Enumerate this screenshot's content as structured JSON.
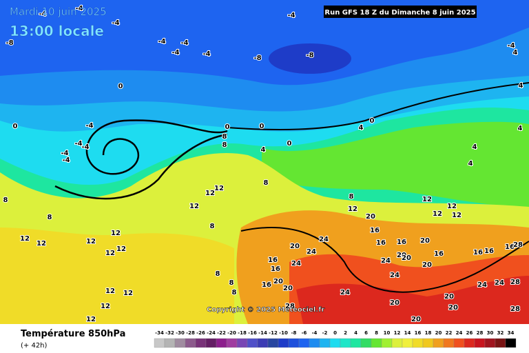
{
  "header": {
    "date": "Mardi 10 juin 2025",
    "time": "13:00 locale",
    "run": "Run GFS 18 Z du Dimanche 8 juin 2025"
  },
  "copyright": "Copyright © 2025 Meteociel.fr",
  "footer": {
    "title": "Température 850hPa",
    "lead": "(+ 42h)"
  },
  "legend": {
    "labels": [
      -34,
      -32,
      -30,
      -28,
      -26,
      -24,
      -22,
      -20,
      -18,
      -16,
      -14,
      -12,
      -10,
      -8,
      -6,
      -4,
      -2,
      0,
      2,
      4,
      6,
      8,
      10,
      12,
      14,
      16,
      18,
      20,
      22,
      24,
      26,
      28,
      30,
      32,
      34
    ],
    "colors": [
      "#c8c8c8",
      "#b4b4b4",
      "#a08ca0",
      "#8c5a8c",
      "#783278",
      "#641e64",
      "#8c1e8c",
      "#a03ca0",
      "#7846b4",
      "#5050c8",
      "#3c3cb4",
      "#2846a0",
      "#1e3cc8",
      "#1e50dc",
      "#1e64f0",
      "#1e8cf0",
      "#1eb4f0",
      "#1edcf0",
      "#1ee6c8",
      "#1ee6a0",
      "#32dc64",
      "#64e632",
      "#a0f032",
      "#dcf03c",
      "#f0f03c",
      "#f0dc28",
      "#f0c81e",
      "#f0a01e",
      "#f0781e",
      "#f0501e",
      "#dc281e",
      "#c8141e",
      "#a0141e",
      "#781414",
      "#000000"
    ]
  },
  "contour_labels": [
    -4,
    -4,
    -4,
    -4,
    -8,
    -4,
    -4,
    -4,
    -4,
    -8,
    -8,
    -4,
    4,
    4,
    0,
    -4,
    0,
    -4,
    -4,
    -4,
    -4,
    0,
    0,
    8,
    8,
    4,
    0,
    4,
    0,
    4,
    4,
    4,
    8,
    12,
    12,
    12,
    8,
    8,
    8,
    12,
    12,
    12,
    12,
    12,
    12,
    12,
    8,
    12,
    12,
    12,
    12,
    20,
    24,
    20,
    24,
    16,
    16,
    16,
    20,
    16,
    16,
    24,
    20,
    20,
    16,
    8,
    8,
    8,
    12,
    12,
    12,
    12,
    20,
    20,
    24,
    20,
    24,
    16,
    16,
    16,
    16,
    28,
    24,
    24,
    28,
    20,
    20,
    24,
    20,
    20,
    28,
    28
  ]
}
